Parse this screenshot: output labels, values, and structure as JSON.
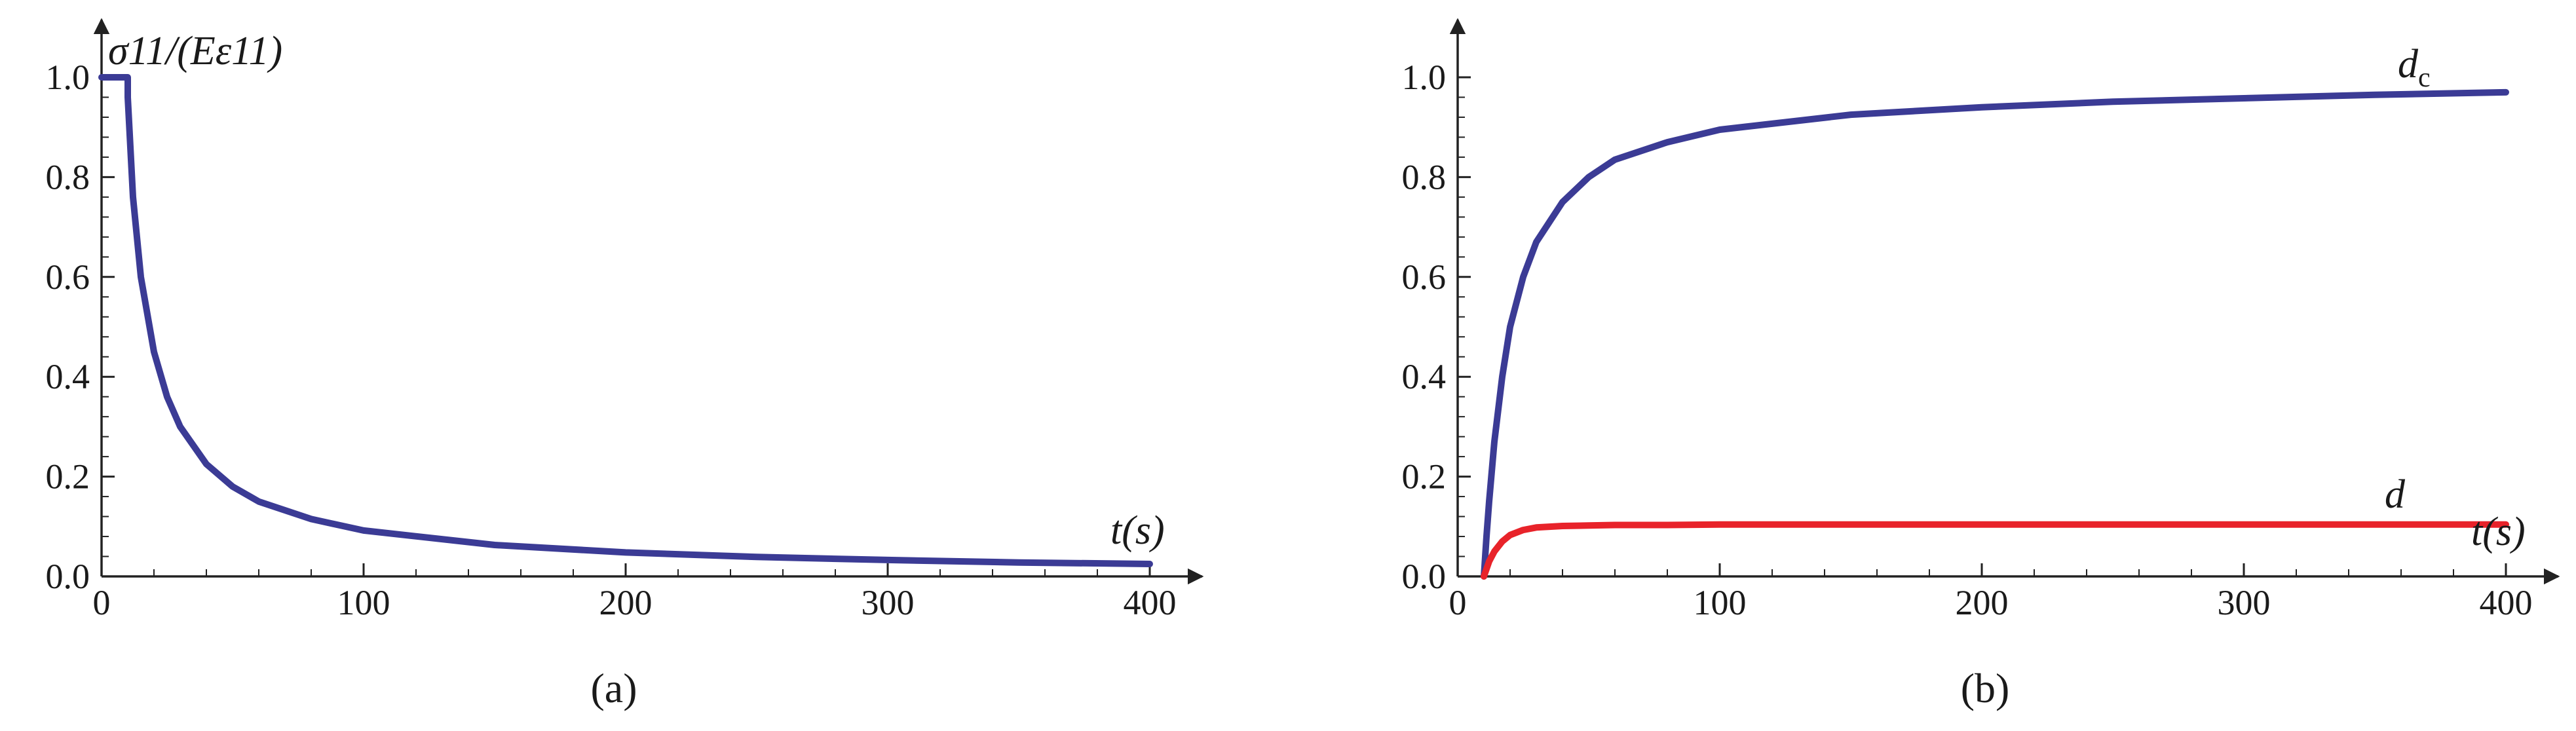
{
  "figure": {
    "panel_labels": [
      "(a)",
      "(b)"
    ]
  },
  "colors": {
    "blue_curve": "#3b3b95",
    "red_curve": "#e8232a",
    "axis": "#222222"
  },
  "chart_data": [
    {
      "type": "line",
      "panel": "(a)",
      "xlabel": "t(s)",
      "ylabel": "σ11/(Eε11)",
      "xlim": [
        0,
        400
      ],
      "ylim": [
        0,
        1.0
      ],
      "xticks": [
        0,
        100,
        200,
        300,
        400
      ],
      "yticks": [
        0.0,
        0.2,
        0.4,
        0.6,
        0.8,
        1.0
      ],
      "xtick_labels": [
        "0",
        "100",
        "200",
        "300",
        "400"
      ],
      "ytick_labels": [
        "0.0",
        "0.2",
        "0.4",
        "0.6",
        "0.8",
        "1.0"
      ],
      "grid": false,
      "series": [
        {
          "color": "#3b3b95",
          "x": [
            0,
            10,
            10,
            12,
            15,
            20,
            25,
            30,
            40,
            50,
            60,
            80,
            100,
            150,
            200,
            250,
            300,
            350,
            400
          ],
          "y": [
            1.0,
            1.0,
            0.96,
            0.76,
            0.6,
            0.45,
            0.36,
            0.3,
            0.225,
            0.18,
            0.15,
            0.115,
            0.092,
            0.063,
            0.048,
            0.039,
            0.033,
            0.028,
            0.025
          ]
        }
      ]
    },
    {
      "type": "line",
      "panel": "(b)",
      "xlabel": "t(s)",
      "xlim": [
        0,
        400
      ],
      "ylim": [
        0,
        1.0
      ],
      "xticks": [
        0,
        100,
        200,
        300,
        400
      ],
      "yticks": [
        0.0,
        0.2,
        0.4,
        0.6,
        0.8,
        1.0
      ],
      "xtick_labels": [
        "0",
        "100",
        "200",
        "300",
        "400"
      ],
      "ytick_labels": [
        "0.0",
        "0.2",
        "0.4",
        "0.6",
        "0.8",
        "1.0"
      ],
      "grid": false,
      "series": [
        {
          "name": "dc",
          "color": "#3b3b95",
          "x": [
            10,
            11,
            12,
            14,
            17,
            20,
            25,
            30,
            40,
            50,
            60,
            80,
            100,
            150,
            200,
            250,
            300,
            350,
            400
          ],
          "y": [
            0.0,
            0.08,
            0.15,
            0.27,
            0.4,
            0.5,
            0.6,
            0.67,
            0.75,
            0.8,
            0.835,
            0.87,
            0.895,
            0.925,
            0.94,
            0.951,
            0.958,
            0.965,
            0.97
          ]
        },
        {
          "name": "d",
          "color": "#e8232a",
          "x": [
            10,
            11,
            12,
            14,
            17,
            20,
            25,
            30,
            40,
            50,
            60,
            80,
            100,
            150,
            200,
            250,
            300,
            350,
            400
          ],
          "y": [
            0.0,
            0.015,
            0.03,
            0.05,
            0.07,
            0.083,
            0.093,
            0.098,
            0.101,
            0.102,
            0.103,
            0.103,
            0.104,
            0.104,
            0.104,
            0.104,
            0.104,
            0.104,
            0.104
          ]
        }
      ]
    }
  ]
}
